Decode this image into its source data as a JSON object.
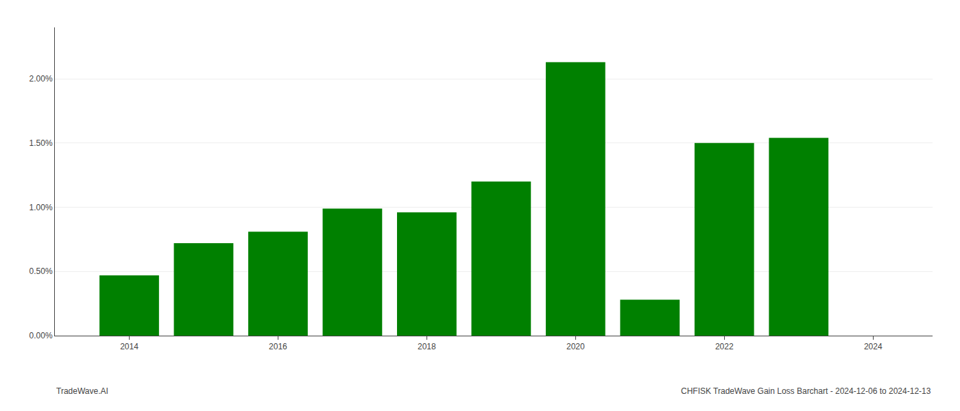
{
  "chart_data": {
    "type": "bar",
    "x": [
      2014,
      2015,
      2016,
      2017,
      2018,
      2019,
      2020,
      2021,
      2022,
      2023
    ],
    "values": [
      0.0047,
      0.0072,
      0.0081,
      0.0099,
      0.0096,
      0.012,
      0.0213,
      0.0028,
      0.015,
      0.0154
    ],
    "color": "#008000",
    "xlim": [
      2013.0,
      2024.8
    ],
    "xticks": [
      2014,
      2016,
      2018,
      2020,
      2022,
      2024
    ],
    "ylim": [
      0,
      0.024
    ],
    "yticks": [
      {
        "value": 0.0,
        "label": "0.00%"
      },
      {
        "value": 0.005,
        "label": "0.50%"
      },
      {
        "value": 0.01,
        "label": "1.00%"
      },
      {
        "value": 0.015,
        "label": "1.50%"
      },
      {
        "value": 0.02,
        "label": "2.00%"
      }
    ],
    "grid": "y",
    "annotations": [
      "TradeWave.AI",
      "CHFISK TradeWave Gain Loss Barchart - 2024-12-06 to 2024-12-13"
    ]
  }
}
